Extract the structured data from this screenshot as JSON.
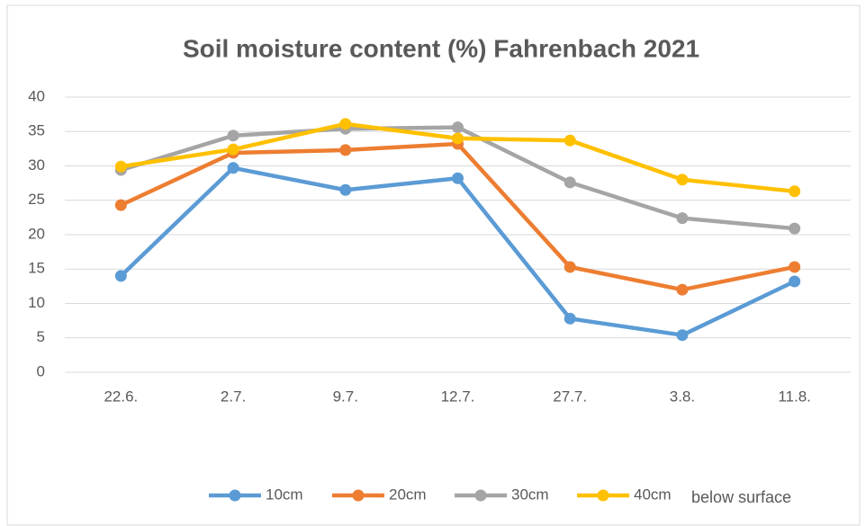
{
  "chart_data": {
    "type": "line",
    "title": "Soil moisture content (%) Fahrenbach 2021",
    "categories": [
      "22.6.",
      "2.7.",
      "9.7.",
      "12.7.",
      "27.7.",
      "3.8.",
      "11.8."
    ],
    "series": [
      {
        "name": "10cm",
        "color": "#5b9bd5",
        "values": [
          14.0,
          29.7,
          26.5,
          28.2,
          7.8,
          5.4,
          13.2
        ]
      },
      {
        "name": "20cm",
        "color": "#ed7d31",
        "values": [
          24.3,
          31.9,
          32.3,
          33.2,
          15.3,
          12.0,
          15.3
        ]
      },
      {
        "name": "30cm",
        "color": "#a5a5a5",
        "values": [
          29.4,
          34.4,
          35.4,
          35.6,
          27.6,
          22.4,
          20.9
        ]
      },
      {
        "name": "40cm",
        "color": "#ffc000",
        "values": [
          29.9,
          32.4,
          36.1,
          34.0,
          33.7,
          28.0,
          26.3
        ]
      }
    ],
    "legend_note": "below surface",
    "ylim": [
      0,
      40
    ],
    "yticks": [
      0,
      5,
      10,
      15,
      20,
      25,
      30,
      35,
      40
    ],
    "grid": true,
    "legend": "bottom"
  }
}
